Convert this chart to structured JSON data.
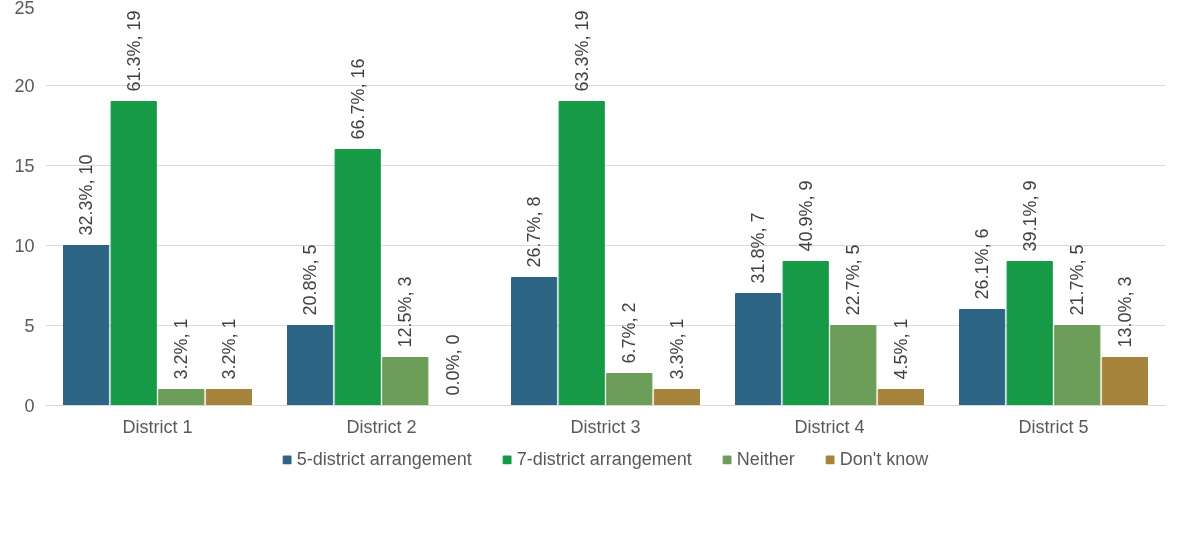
{
  "chart_data": {
    "type": "bar",
    "categories": [
      "District 1",
      "District 2",
      "District 3",
      "District 4",
      "District 5"
    ],
    "series": [
      {
        "name": "5-district arrangement",
        "color": "#2b6484",
        "values": [
          10,
          5,
          8,
          7,
          6
        ],
        "value_labels": [
          "32.3%, 10",
          "20.8%, 5",
          "26.7%, 8",
          "31.8%, 7",
          "26.1%, 6"
        ]
      },
      {
        "name": "7-district arrangement",
        "color": "#179a46",
        "values": [
          19,
          16,
          19,
          9,
          9
        ],
        "value_labels": [
          "61.3%, 19",
          "66.7%, 16",
          "63.3%, 19",
          "40.9%, 9",
          "39.1%, 9"
        ]
      },
      {
        "name": "Neither",
        "color": "#6c9e59",
        "values": [
          1,
          3,
          2,
          5,
          5
        ],
        "value_labels": [
          "3.2%, 1",
          "12.5%, 3",
          "6.7%, 2",
          "22.7%, 5",
          "21.7%, 5"
        ]
      },
      {
        "name": "Don't know",
        "color": "#a6833a",
        "values": [
          1,
          0,
          1,
          1,
          3
        ],
        "value_labels": [
          "3.2%, 1",
          "0.0%, 0",
          "3.3%, 1",
          "4.5%, 1",
          "13.0%, 3"
        ]
      }
    ],
    "ylim": [
      0,
      25
    ],
    "yticks": [
      0,
      5,
      10,
      15,
      20,
      25
    ],
    "grid": "y",
    "legend": "bottom"
  }
}
